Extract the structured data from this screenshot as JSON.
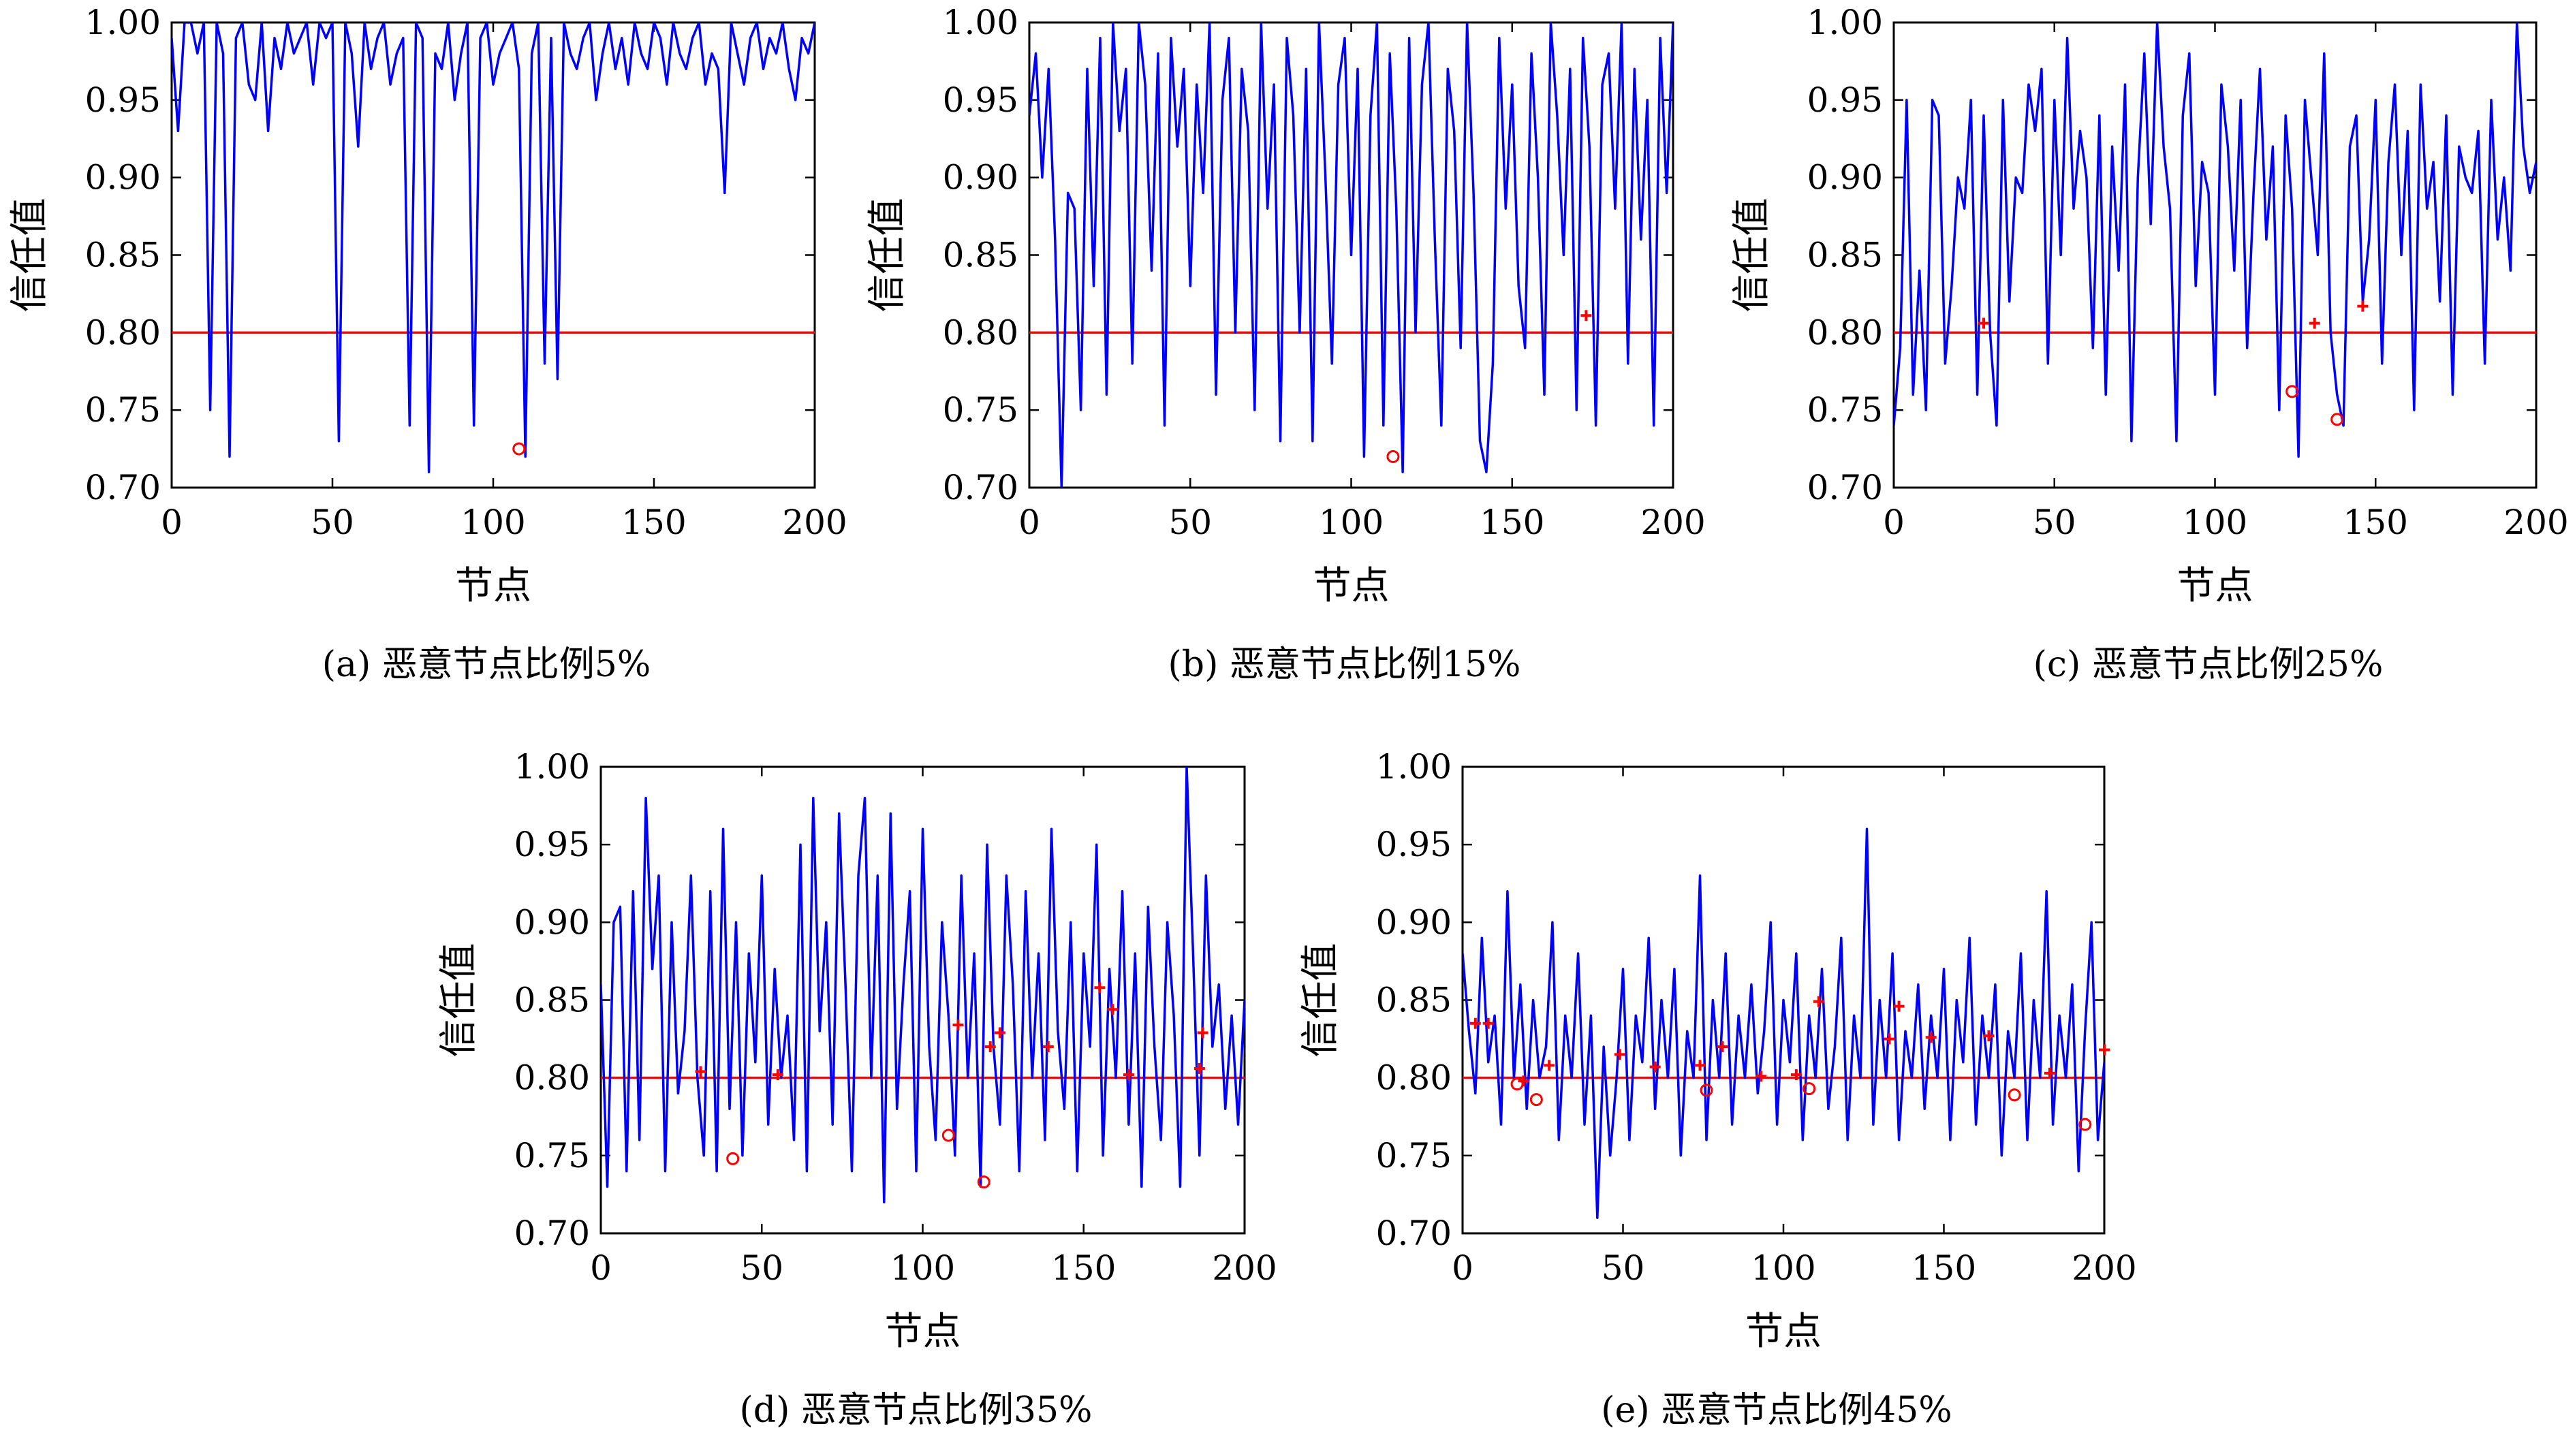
{
  "chart_data": [
    {
      "type": "line",
      "caption": "(a) 恶意节点比例5%",
      "xlabel": "节点",
      "ylabel": "信任值",
      "xlim": [
        0,
        200
      ],
      "ylim": [
        0.7,
        1.0
      ],
      "xticks": [
        "0",
        "50",
        "100",
        "150",
        "200"
      ],
      "yticks": [
        "0.70",
        "0.75",
        "0.80",
        "0.85",
        "0.90",
        "0.95",
        "1.00"
      ],
      "threshold": 0.8,
      "line_color": "#0000ff",
      "threshold_color": "#ff0000",
      "marker_color": "#ff0000",
      "x": [
        0,
        2,
        4,
        6,
        8,
        10,
        12,
        14,
        16,
        18,
        20,
        22,
        24,
        26,
        28,
        30,
        32,
        34,
        36,
        38,
        40,
        42,
        44,
        46,
        48,
        50,
        52,
        54,
        56,
        58,
        60,
        62,
        64,
        66,
        68,
        70,
        72,
        74,
        76,
        78,
        80,
        82,
        84,
        86,
        88,
        90,
        92,
        94,
        96,
        98,
        100,
        102,
        104,
        106,
        108,
        110,
        112,
        114,
        116,
        118,
        120,
        122,
        124,
        126,
        128,
        130,
        132,
        134,
        136,
        138,
        140,
        142,
        144,
        146,
        148,
        150,
        152,
        154,
        156,
        158,
        160,
        162,
        164,
        166,
        168,
        170,
        172,
        174,
        176,
        178,
        180,
        182,
        184,
        186,
        188,
        190,
        192,
        194,
        196,
        198,
        200
      ],
      "y": [
        0.99,
        0.93,
        1.0,
        1.0,
        0.98,
        1.0,
        0.75,
        1.0,
        0.98,
        0.72,
        0.99,
        1.0,
        0.96,
        0.95,
        1.0,
        0.93,
        0.99,
        0.97,
        1.0,
        0.98,
        0.99,
        1.0,
        0.96,
        1.0,
        0.99,
        1.0,
        0.73,
        1.0,
        0.98,
        0.92,
        1.0,
        0.97,
        0.99,
        1.0,
        0.96,
        0.98,
        0.99,
        0.74,
        1.0,
        0.99,
        0.71,
        0.98,
        0.97,
        1.0,
        0.95,
        0.98,
        1.0,
        0.74,
        0.99,
        1.0,
        0.96,
        0.98,
        0.99,
        1.0,
        0.97,
        0.72,
        0.98,
        1.0,
        0.78,
        0.99,
        0.77,
        1.0,
        0.98,
        0.97,
        0.99,
        1.0,
        0.95,
        0.98,
        1.0,
        0.97,
        0.99,
        0.96,
        1.0,
        0.98,
        0.97,
        1.0,
        0.99,
        0.96,
        1.0,
        0.98,
        0.97,
        0.99,
        1.0,
        0.96,
        0.98,
        0.97,
        0.89,
        1.0,
        0.98,
        0.96,
        0.99,
        1.0,
        0.97,
        0.99,
        0.98,
        1.0,
        0.97,
        0.95,
        0.99,
        0.98,
        1.0
      ],
      "circle_markers": [
        {
          "x": 108,
          "y": 0.725
        }
      ],
      "plus_markers": []
    },
    {
      "type": "line",
      "caption": "(b) 恶意节点比例15%",
      "xlabel": "节点",
      "ylabel": "信任值",
      "xlim": [
        0,
        200
      ],
      "ylim": [
        0.7,
        1.0
      ],
      "xticks": [
        "0",
        "50",
        "100",
        "150",
        "200"
      ],
      "yticks": [
        "0.70",
        "0.75",
        "0.80",
        "0.85",
        "0.90",
        "0.95",
        "1.00"
      ],
      "threshold": 0.8,
      "line_color": "#0000ff",
      "threshold_color": "#ff0000",
      "marker_color": "#ff0000",
      "x": [
        0,
        2,
        4,
        6,
        8,
        10,
        12,
        14,
        16,
        18,
        20,
        22,
        24,
        26,
        28,
        30,
        32,
        34,
        36,
        38,
        40,
        42,
        44,
        46,
        48,
        50,
        52,
        54,
        56,
        58,
        60,
        62,
        64,
        66,
        68,
        70,
        72,
        74,
        76,
        78,
        80,
        82,
        84,
        86,
        88,
        90,
        92,
        94,
        96,
        98,
        100,
        102,
        104,
        106,
        108,
        110,
        112,
        114,
        116,
        118,
        120,
        122,
        124,
        126,
        128,
        130,
        132,
        134,
        136,
        138,
        140,
        142,
        144,
        146,
        148,
        150,
        152,
        154,
        156,
        158,
        160,
        162,
        164,
        166,
        168,
        170,
        172,
        174,
        176,
        178,
        180,
        182,
        184,
        186,
        188,
        190,
        192,
        194,
        196,
        198,
        200
      ],
      "y": [
        0.94,
        0.98,
        0.9,
        0.97,
        0.86,
        0.7,
        0.89,
        0.88,
        0.75,
        0.97,
        0.83,
        0.99,
        0.76,
        1.0,
        0.93,
        0.97,
        0.78,
        1.0,
        0.96,
        0.84,
        0.98,
        0.74,
        0.99,
        0.92,
        0.97,
        0.83,
        0.96,
        0.89,
        1.0,
        0.76,
        0.95,
        0.99,
        0.8,
        0.97,
        0.93,
        0.75,
        1.0,
        0.88,
        0.96,
        0.73,
        0.99,
        0.94,
        0.8,
        0.97,
        0.73,
        1.0,
        0.9,
        0.78,
        0.96,
        0.99,
        0.85,
        0.97,
        0.72,
        0.94,
        1.0,
        0.74,
        0.98,
        0.88,
        0.71,
        0.99,
        0.8,
        0.96,
        1.0,
        0.86,
        0.74,
        0.97,
        0.93,
        0.79,
        1.0,
        0.89,
        0.73,
        0.71,
        0.78,
        0.99,
        0.88,
        0.96,
        0.83,
        0.79,
        0.98,
        0.9,
        0.76,
        1.0,
        0.94,
        0.85,
        0.97,
        0.75,
        0.99,
        0.92,
        0.74,
        0.96,
        0.98,
        0.88,
        1.0,
        0.78,
        0.97,
        0.86,
        0.95,
        0.74,
        0.99,
        0.89,
        1.0
      ],
      "circle_markers": [
        {
          "x": 113,
          "y": 0.72
        }
      ],
      "plus_markers": [
        {
          "x": 173,
          "y": 0.811
        }
      ]
    },
    {
      "type": "line",
      "caption": "(c) 恶意节点比例25%",
      "xlabel": "节点",
      "ylabel": "信任值",
      "xlim": [
        0,
        200
      ],
      "ylim": [
        0.7,
        1.0
      ],
      "xticks": [
        "0",
        "50",
        "100",
        "150",
        "200"
      ],
      "yticks": [
        "0.70",
        "0.75",
        "0.80",
        "0.85",
        "0.90",
        "0.95",
        "1.00"
      ],
      "threshold": 0.8,
      "line_color": "#0000ff",
      "threshold_color": "#ff0000",
      "marker_color": "#ff0000",
      "x": [
        0,
        2,
        4,
        6,
        8,
        10,
        12,
        14,
        16,
        18,
        20,
        22,
        24,
        26,
        28,
        30,
        32,
        34,
        36,
        38,
        40,
        42,
        44,
        46,
        48,
        50,
        52,
        54,
        56,
        58,
        60,
        62,
        64,
        66,
        68,
        70,
        72,
        74,
        76,
        78,
        80,
        82,
        84,
        86,
        88,
        90,
        92,
        94,
        96,
        98,
        100,
        102,
        104,
        106,
        108,
        110,
        112,
        114,
        116,
        118,
        120,
        122,
        124,
        126,
        128,
        130,
        132,
        134,
        136,
        138,
        140,
        142,
        144,
        146,
        148,
        150,
        152,
        154,
        156,
        158,
        160,
        162,
        164,
        166,
        168,
        170,
        172,
        174,
        176,
        178,
        180,
        182,
        184,
        186,
        188,
        190,
        192,
        194,
        196,
        198,
        200
      ],
      "y": [
        0.74,
        0.79,
        0.95,
        0.76,
        0.84,
        0.75,
        0.95,
        0.94,
        0.78,
        0.83,
        0.9,
        0.88,
        0.95,
        0.76,
        0.94,
        0.8,
        0.74,
        0.95,
        0.82,
        0.9,
        0.89,
        0.96,
        0.93,
        0.97,
        0.78,
        0.95,
        0.85,
        0.99,
        0.88,
        0.93,
        0.9,
        0.79,
        0.94,
        0.76,
        0.92,
        0.84,
        0.96,
        0.73,
        0.9,
        0.98,
        0.87,
        1.0,
        0.92,
        0.88,
        0.73,
        0.94,
        0.98,
        0.83,
        0.91,
        0.89,
        0.76,
        0.96,
        0.92,
        0.84,
        0.95,
        0.79,
        0.89,
        0.97,
        0.86,
        0.92,
        0.75,
        0.94,
        0.88,
        0.72,
        0.95,
        0.9,
        0.85,
        0.98,
        0.8,
        0.76,
        0.74,
        0.92,
        0.94,
        0.82,
        0.86,
        0.95,
        0.78,
        0.91,
        0.96,
        0.85,
        0.93,
        0.75,
        0.96,
        0.88,
        0.91,
        0.82,
        0.94,
        0.76,
        0.92,
        0.9,
        0.89,
        0.93,
        0.78,
        0.95,
        0.86,
        0.9,
        0.84,
        1.0,
        0.92,
        0.89,
        0.91
      ],
      "circle_markers": [
        {
          "x": 124,
          "y": 0.762
        },
        {
          "x": 138,
          "y": 0.744
        }
      ],
      "plus_markers": [
        {
          "x": 28,
          "y": 0.806
        },
        {
          "x": 131,
          "y": 0.806
        },
        {
          "x": 146,
          "y": 0.817
        }
      ]
    },
    {
      "type": "line",
      "caption": "(d) 恶意节点比例35%",
      "xlabel": "节点",
      "ylabel": "信任值",
      "xlim": [
        0,
        200
      ],
      "ylim": [
        0.7,
        1.0
      ],
      "xticks": [
        "0",
        "50",
        "100",
        "150",
        "200"
      ],
      "yticks": [
        "0.70",
        "0.75",
        "0.80",
        "0.85",
        "0.90",
        "0.95",
        "1.00"
      ],
      "threshold": 0.8,
      "line_color": "#0000ff",
      "threshold_color": "#ff0000",
      "marker_color": "#ff0000",
      "x": [
        0,
        2,
        4,
        6,
        8,
        10,
        12,
        14,
        16,
        18,
        20,
        22,
        24,
        26,
        28,
        30,
        32,
        34,
        36,
        38,
        40,
        42,
        44,
        46,
        48,
        50,
        52,
        54,
        56,
        58,
        60,
        62,
        64,
        66,
        68,
        70,
        72,
        74,
        76,
        78,
        80,
        82,
        84,
        86,
        88,
        90,
        92,
        94,
        96,
        98,
        100,
        102,
        104,
        106,
        108,
        110,
        112,
        114,
        116,
        118,
        120,
        122,
        124,
        126,
        128,
        130,
        132,
        134,
        136,
        138,
        140,
        142,
        144,
        146,
        148,
        150,
        152,
        154,
        156,
        158,
        160,
        162,
        164,
        166,
        168,
        170,
        172,
        174,
        176,
        178,
        180,
        182,
        184,
        186,
        188,
        190,
        192,
        194,
        196,
        198,
        200
      ],
      "y": [
        0.86,
        0.73,
        0.9,
        0.91,
        0.74,
        0.92,
        0.76,
        0.98,
        0.87,
        0.93,
        0.74,
        0.9,
        0.79,
        0.83,
        0.93,
        0.8,
        0.75,
        0.92,
        0.74,
        0.96,
        0.78,
        0.9,
        0.75,
        0.88,
        0.81,
        0.93,
        0.77,
        0.87,
        0.8,
        0.84,
        0.76,
        0.95,
        0.74,
        0.98,
        0.83,
        0.9,
        0.77,
        0.97,
        0.86,
        0.74,
        0.93,
        0.98,
        0.8,
        0.93,
        0.72,
        0.97,
        0.78,
        0.86,
        0.92,
        0.74,
        0.96,
        0.82,
        0.76,
        0.9,
        0.84,
        0.75,
        0.93,
        0.8,
        0.88,
        0.73,
        0.95,
        0.82,
        0.77,
        0.93,
        0.86,
        0.74,
        0.92,
        0.8,
        0.88,
        0.76,
        0.96,
        0.83,
        0.78,
        0.9,
        0.74,
        0.88,
        0.82,
        0.95,
        0.75,
        0.87,
        0.8,
        0.92,
        0.77,
        0.88,
        0.73,
        0.91,
        0.82,
        0.76,
        0.9,
        0.84,
        0.73,
        1.0,
        0.88,
        0.75,
        0.93,
        0.82,
        0.86,
        0.78,
        0.84,
        0.77,
        0.85
      ],
      "circle_markers": [
        {
          "x": 41,
          "y": 0.748
        },
        {
          "x": 108,
          "y": 0.763
        },
        {
          "x": 119,
          "y": 0.733
        }
      ],
      "plus_markers": [
        {
          "x": 31,
          "y": 0.804
        },
        {
          "x": 55,
          "y": 0.802
        },
        {
          "x": 111,
          "y": 0.834
        },
        {
          "x": 121,
          "y": 0.82
        },
        {
          "x": 124,
          "y": 0.829
        },
        {
          "x": 139,
          "y": 0.82
        },
        {
          "x": 155,
          "y": 0.858
        },
        {
          "x": 159,
          "y": 0.844
        },
        {
          "x": 164,
          "y": 0.802
        },
        {
          "x": 186,
          "y": 0.806
        },
        {
          "x": 187,
          "y": 0.829
        }
      ]
    },
    {
      "type": "line",
      "caption": "(e) 恶意节点比例45%",
      "xlabel": "节点",
      "ylabel": "信任值",
      "xlim": [
        0,
        200
      ],
      "ylim": [
        0.7,
        1.0
      ],
      "xticks": [
        "0",
        "50",
        "100",
        "150",
        "200"
      ],
      "yticks": [
        "0.70",
        "0.75",
        "0.80",
        "0.85",
        "0.90",
        "0.95",
        "1.00"
      ],
      "threshold": 0.8,
      "line_color": "#0000ff",
      "threshold_color": "#ff0000",
      "marker_color": "#ff0000",
      "x": [
        0,
        2,
        4,
        6,
        8,
        10,
        12,
        14,
        16,
        18,
        20,
        22,
        24,
        26,
        28,
        30,
        32,
        34,
        36,
        38,
        40,
        42,
        44,
        46,
        48,
        50,
        52,
        54,
        56,
        58,
        60,
        62,
        64,
        66,
        68,
        70,
        72,
        74,
        76,
        78,
        80,
        82,
        84,
        86,
        88,
        90,
        92,
        94,
        96,
        98,
        100,
        102,
        104,
        106,
        108,
        110,
        112,
        114,
        116,
        118,
        120,
        122,
        124,
        126,
        128,
        130,
        132,
        134,
        136,
        138,
        140,
        142,
        144,
        146,
        148,
        150,
        152,
        154,
        156,
        158,
        160,
        162,
        164,
        166,
        168,
        170,
        172,
        174,
        176,
        178,
        180,
        182,
        184,
        186,
        188,
        190,
        192,
        194,
        196,
        198,
        200
      ],
      "y": [
        0.88,
        0.83,
        0.79,
        0.89,
        0.81,
        0.84,
        0.77,
        0.92,
        0.8,
        0.86,
        0.78,
        0.85,
        0.8,
        0.82,
        0.9,
        0.76,
        0.84,
        0.8,
        0.88,
        0.77,
        0.84,
        0.71,
        0.82,
        0.75,
        0.8,
        0.87,
        0.76,
        0.84,
        0.81,
        0.89,
        0.78,
        0.85,
        0.8,
        0.87,
        0.75,
        0.83,
        0.8,
        0.93,
        0.76,
        0.85,
        0.8,
        0.88,
        0.77,
        0.84,
        0.8,
        0.86,
        0.79,
        0.83,
        0.9,
        0.77,
        0.85,
        0.81,
        0.88,
        0.76,
        0.84,
        0.8,
        0.87,
        0.78,
        0.82,
        0.89,
        0.76,
        0.84,
        0.8,
        0.96,
        0.77,
        0.85,
        0.8,
        0.88,
        0.76,
        0.83,
        0.8,
        0.86,
        0.78,
        0.84,
        0.8,
        0.87,
        0.76,
        0.85,
        0.81,
        0.89,
        0.77,
        0.84,
        0.8,
        0.86,
        0.75,
        0.83,
        0.8,
        0.88,
        0.76,
        0.85,
        0.8,
        0.92,
        0.77,
        0.84,
        0.8,
        0.86,
        0.74,
        0.83,
        0.9,
        0.76,
        0.81
      ],
      "circle_markers": [
        {
          "x": 17,
          "y": 0.796
        },
        {
          "x": 23,
          "y": 0.786
        },
        {
          "x": 76,
          "y": 0.792
        },
        {
          "x": 108,
          "y": 0.793
        },
        {
          "x": 172,
          "y": 0.789
        },
        {
          "x": 194,
          "y": 0.77
        }
      ],
      "plus_markers": [
        {
          "x": 4,
          "y": 0.835
        },
        {
          "x": 8,
          "y": 0.835
        },
        {
          "x": 19,
          "y": 0.798
        },
        {
          "x": 27,
          "y": 0.808
        },
        {
          "x": 49,
          "y": 0.815
        },
        {
          "x": 60,
          "y": 0.807
        },
        {
          "x": 74,
          "y": 0.808
        },
        {
          "x": 81,
          "y": 0.82
        },
        {
          "x": 93,
          "y": 0.801
        },
        {
          "x": 104,
          "y": 0.802
        },
        {
          "x": 111,
          "y": 0.849
        },
        {
          "x": 133,
          "y": 0.825
        },
        {
          "x": 136,
          "y": 0.846
        },
        {
          "x": 146,
          "y": 0.826
        },
        {
          "x": 164,
          "y": 0.827
        },
        {
          "x": 183,
          "y": 0.803
        },
        {
          "x": 200,
          "y": 0.818
        }
      ]
    }
  ]
}
